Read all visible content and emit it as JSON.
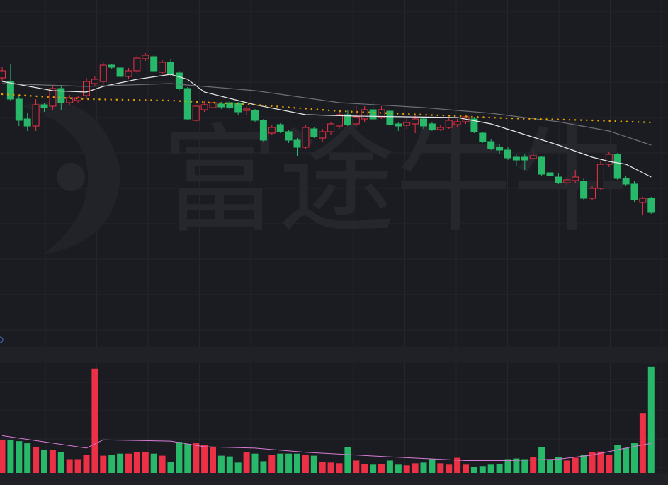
{
  "chart_data": {
    "type": "candlestick",
    "watermark": "富途牛牛",
    "up_color": "#ec3147",
    "down_color": "#27b86a",
    "ylim": [
      0,
      480
    ],
    "open": [
      370,
      365,
      340,
      312,
      302,
      332,
      330,
      355,
      335,
      338,
      345,
      362,
      365,
      388,
      384,
      372,
      380,
      397,
      400,
      378,
      392,
      377,
      355,
      310,
      325,
      328,
      333,
      335,
      334,
      324,
      324,
      310,
      292,
      304,
      294,
      282,
      272,
      298,
      285,
      294,
      302,
      318,
      305,
      312,
      325,
      314,
      323,
      305,
      303,
      305,
      312,
      305,
      297,
      300,
      304,
      308,
      312,
      292,
      280,
      272,
      268,
      258,
      258,
      256,
      258,
      236,
      230,
      222,
      225,
      224,
      200,
      214,
      248,
      262,
      228,
      220,
      194,
      200
    ],
    "high": [
      385,
      390,
      345,
      320,
      340,
      335,
      360,
      360,
      346,
      345,
      370,
      372,
      392,
      390,
      386,
      384,
      402,
      405,
      403,
      395,
      396,
      380,
      357,
      335,
      338,
      345,
      336,
      338,
      336,
      330,
      326,
      312,
      304,
      306,
      296,
      285,
      303,
      300,
      298,
      308,
      322,
      325,
      330,
      330,
      337,
      330,
      326,
      308,
      315,
      318,
      314,
      308,
      303,
      314,
      312,
      318,
      315,
      294,
      284,
      276,
      272,
      262,
      262,
      270,
      260,
      245,
      235,
      230,
      240,
      228,
      218,
      252,
      266,
      264,
      232,
      224,
      202,
      202
    ],
    "low": [
      365,
      338,
      302,
      295,
      295,
      322,
      325,
      325,
      332,
      335,
      340,
      358,
      360,
      383,
      370,
      368,
      376,
      394,
      378,
      375,
      372,
      352,
      310,
      308,
      322,
      325,
      326,
      325,
      318,
      318,
      308,
      280,
      290,
      292,
      278,
      260,
      270,
      285,
      280,
      290,
      298,
      302,
      300,
      308,
      310,
      312,
      300,
      295,
      298,
      292,
      298,
      295,
      295,
      298,
      300,
      305,
      292,
      278,
      268,
      262,
      254,
      246,
      240,
      252,
      232,
      215,
      220,
      218,
      222,
      198,
      198,
      212,
      244,
      226,
      218,
      195,
      176,
      178
    ],
    "close": [
      380,
      340,
      310,
      302,
      332,
      328,
      355,
      335,
      342,
      342,
      365,
      368,
      388,
      385,
      372,
      380,
      398,
      402,
      380,
      392,
      375,
      355,
      312,
      330,
      332,
      335,
      329,
      328,
      322,
      326,
      310,
      282,
      300,
      294,
      282,
      272,
      300,
      287,
      294,
      305,
      318,
      304,
      315,
      325,
      312,
      325,
      304,
      302,
      307,
      312,
      302,
      297,
      300,
      310,
      308,
      315,
      294,
      280,
      270,
      268,
      257,
      254,
      254,
      260,
      234,
      232,
      222,
      226,
      230,
      200,
      214,
      248,
      262,
      228,
      220,
      198,
      200,
      180
    ],
    "ma": [
      {
        "color": "#e8e8e8",
        "style": "solid",
        "x": [
          0,
          6,
          10,
          12,
          16,
          20,
          22,
          24,
          30,
          36,
          42,
          48,
          54,
          58,
          62,
          66,
          70,
          72,
          74,
          77
        ],
        "values": [
          365,
          352,
          350,
          358,
          368,
          375,
          368,
          350,
          332,
          318,
          316,
          315,
          314,
          305,
          290,
          275,
          258,
          252,
          248,
          230
        ]
      },
      {
        "color": "#6d6e74",
        "style": "solid",
        "x": [
          0,
          10,
          20,
          24,
          30,
          40,
          50,
          58,
          66,
          72,
          77
        ],
        "values": [
          362,
          358,
          362,
          358,
          352,
          335,
          328,
          320,
          308,
          295,
          275
        ]
      },
      {
        "color": "#e0a100",
        "style": "dotted",
        "x": [
          0,
          10,
          20,
          30,
          40,
          50,
          60,
          70,
          77
        ],
        "values": [
          347,
          340,
          338,
          332,
          323,
          318,
          313,
          310,
          307
        ]
      }
    ],
    "volume": {
      "ylim": [
        0,
        160
      ],
      "values": [
        48,
        48,
        46,
        43,
        38,
        33,
        33,
        30,
        20,
        20,
        26,
        151,
        25,
        26,
        28,
        28,
        30,
        30,
        28,
        25,
        16,
        45,
        42,
        43,
        40,
        38,
        25,
        24,
        15,
        30,
        28,
        17,
        26,
        28,
        28,
        28,
        26,
        25,
        16,
        15,
        14,
        37,
        18,
        13,
        12,
        13,
        18,
        12,
        11,
        14,
        15,
        20,
        14,
        12,
        22,
        12,
        9,
        10,
        12,
        13,
        20,
        21,
        20,
        23,
        37,
        20,
        23,
        18,
        22,
        26,
        30,
        31,
        26,
        40,
        36,
        43,
        86,
        154
      ],
      "ma": {
        "color": "#d77bd6",
        "x": [
          0,
          10,
          12,
          20,
          24,
          30,
          36,
          45,
          55,
          60,
          66,
          70,
          74,
          77
        ],
        "values": [
          54,
          36,
          48,
          46,
          38,
          36,
          30,
          24,
          18,
          18,
          20,
          26,
          36,
          43
        ]
      }
    }
  }
}
